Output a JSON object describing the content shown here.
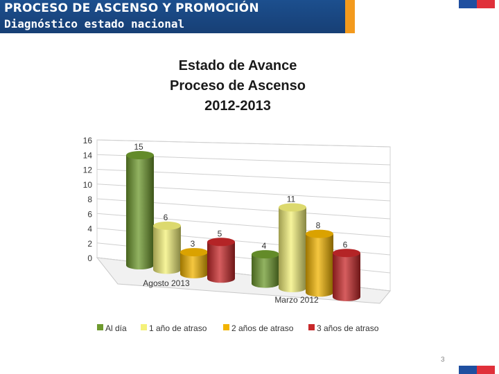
{
  "header": {
    "title": "PROCESO DE ASCENSO Y PROMOCIÓN",
    "subtitle": "Diagnóstico estado nacional"
  },
  "page_number": "3",
  "colors": {
    "header_blue": "#1c4f8e",
    "header_accent": "#f39a1d",
    "flag_blue": "#1f4fa0",
    "flag_red": "#e0303a"
  },
  "chart_data": {
    "type": "bar",
    "title_lines": [
      "Estado de Avance",
      "Proceso de Ascenso",
      "2012-2013"
    ],
    "categories": [
      "Agosto 2013",
      "Marzo 2012"
    ],
    "series": [
      {
        "name": "Al día",
        "color": "#6e9a2e",
        "values": [
          15,
          4
        ]
      },
      {
        "name": "1 año de atraso",
        "color": "#f4f17a",
        "values": [
          6,
          11
        ]
      },
      {
        "name": "2 años de atraso",
        "color": "#f2b400",
        "values": [
          3,
          8
        ]
      },
      {
        "name": "3 años de atraso",
        "color": "#c8282a",
        "values": [
          5,
          6
        ]
      }
    ],
    "ylim": [
      0,
      16
    ],
    "yticks": [
      "0",
      "2",
      "4",
      "6",
      "8",
      "10",
      "12",
      "14",
      "16"
    ],
    "grid": true,
    "legend_position": "bottom",
    "style": "3d-cylinder"
  }
}
